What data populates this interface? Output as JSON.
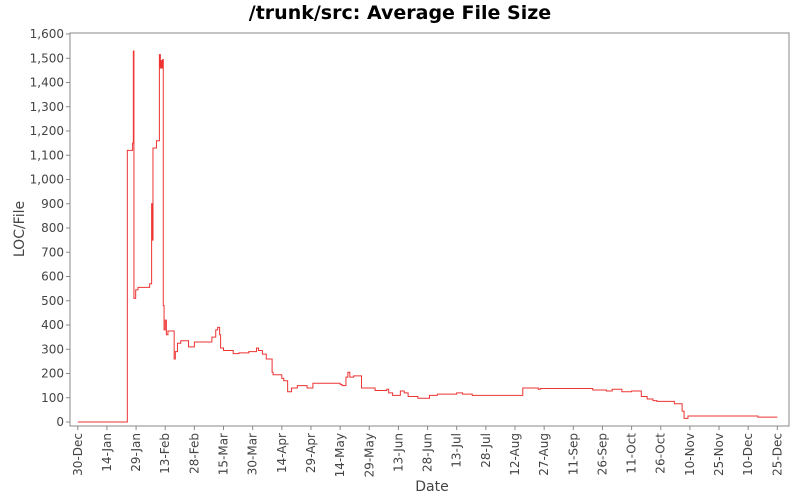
{
  "chart_data": {
    "type": "line",
    "title": "/trunk/src: Average File Size",
    "xlabel": "Date",
    "ylabel": "LOC/File",
    "ylim": [
      0,
      1600
    ],
    "yticks": [
      0,
      100,
      200,
      300,
      400,
      500,
      600,
      700,
      800,
      900,
      1000,
      1100,
      1200,
      1300,
      1400,
      1500,
      1600
    ],
    "ytick_labels": [
      "0",
      "100",
      "200",
      "300",
      "400",
      "500",
      "600",
      "700",
      "800",
      "900",
      "1,000",
      "1,100",
      "1,200",
      "1,300",
      "1,400",
      "1,500",
      "1,600"
    ],
    "x_unit": "days from 30-Dec",
    "xlim": [
      -4,
      366
    ],
    "xticks": [
      {
        "day": 0,
        "label": "30-Dec"
      },
      {
        "day": 15,
        "label": "14-Jan"
      },
      {
        "day": 30,
        "label": "29-Jan"
      },
      {
        "day": 45,
        "label": "13-Feb"
      },
      {
        "day": 60,
        "label": "28-Feb"
      },
      {
        "day": 75,
        "label": "15-Mar"
      },
      {
        "day": 90,
        "label": "30-Mar"
      },
      {
        "day": 105,
        "label": "14-Apr"
      },
      {
        "day": 120,
        "label": "29-Apr"
      },
      {
        "day": 135,
        "label": "14-May"
      },
      {
        "day": 150,
        "label": "29-May"
      },
      {
        "day": 165,
        "label": "13-Jun"
      },
      {
        "day": 180,
        "label": "28-Jun"
      },
      {
        "day": 195,
        "label": "13-Jul"
      },
      {
        "day": 210,
        "label": "28-Jul"
      },
      {
        "day": 225,
        "label": "12-Aug"
      },
      {
        "day": 240,
        "label": "27-Aug"
      },
      {
        "day": 255,
        "label": "11-Sep"
      },
      {
        "day": 270,
        "label": "26-Sep"
      },
      {
        "day": 285,
        "label": "11-Oct"
      },
      {
        "day": 300,
        "label": "26-Oct"
      },
      {
        "day": 315,
        "label": "10-Nov"
      },
      {
        "day": 330,
        "label": "25-Nov"
      },
      {
        "day": 345,
        "label": "10-Dec"
      },
      {
        "day": 360,
        "label": "25-Dec"
      }
    ],
    "grid": false,
    "series": [
      {
        "name": "",
        "color": "#ee3333",
        "step": true,
        "points": [
          [
            0,
            0
          ],
          [
            25.5,
            0
          ],
          [
            25.5,
            1120
          ],
          [
            28.2,
            1120
          ],
          [
            28.2,
            1150
          ],
          [
            28.6,
            1150
          ],
          [
            28.6,
            1530
          ],
          [
            28.9,
            1530
          ],
          [
            28.9,
            510
          ],
          [
            29.8,
            510
          ],
          [
            29.8,
            545
          ],
          [
            31,
            545
          ],
          [
            31,
            555
          ],
          [
            37,
            555
          ],
          [
            37,
            570
          ],
          [
            38,
            570
          ],
          [
            38,
            900
          ],
          [
            38.4,
            900
          ],
          [
            38.4,
            750
          ],
          [
            38.7,
            750
          ],
          [
            38.7,
            1130
          ],
          [
            40.5,
            1130
          ],
          [
            40.5,
            1160
          ],
          [
            42,
            1160
          ],
          [
            42,
            1515
          ],
          [
            42.5,
            1515
          ],
          [
            42.5,
            1460
          ],
          [
            43,
            1460
          ],
          [
            43,
            1490
          ],
          [
            43.3,
            1490
          ],
          [
            43.3,
            1460
          ],
          [
            43.7,
            1460
          ],
          [
            43.7,
            1495
          ],
          [
            44,
            1495
          ],
          [
            44,
            480
          ],
          [
            44.4,
            480
          ],
          [
            44.4,
            380
          ],
          [
            45,
            380
          ],
          [
            45,
            420
          ],
          [
            45.6,
            420
          ],
          [
            45.6,
            360
          ],
          [
            46.4,
            360
          ],
          [
            46.4,
            375
          ],
          [
            49.6,
            375
          ],
          [
            49.6,
            260
          ],
          [
            50.2,
            260
          ],
          [
            50.2,
            290
          ],
          [
            51.3,
            290
          ],
          [
            51.3,
            325
          ],
          [
            53,
            325
          ],
          [
            53,
            335
          ],
          [
            57,
            335
          ],
          [
            57,
            310
          ],
          [
            60,
            310
          ],
          [
            60,
            330
          ],
          [
            69,
            330
          ],
          [
            69,
            350
          ],
          [
            71,
            350
          ],
          [
            71,
            380
          ],
          [
            72,
            380
          ],
          [
            72,
            390
          ],
          [
            73,
            390
          ],
          [
            73,
            360
          ],
          [
            73.5,
            360
          ],
          [
            73.5,
            305
          ],
          [
            75,
            305
          ],
          [
            75,
            295
          ],
          [
            80,
            295
          ],
          [
            80,
            282
          ],
          [
            83,
            282
          ],
          [
            83,
            285
          ],
          [
            88,
            285
          ],
          [
            88,
            290
          ],
          [
            92,
            290
          ],
          [
            92,
            305
          ],
          [
            93,
            305
          ],
          [
            93,
            295
          ],
          [
            95,
            295
          ],
          [
            95,
            280
          ],
          [
            97,
            280
          ],
          [
            97,
            260
          ],
          [
            100,
            260
          ],
          [
            100,
            205
          ],
          [
            100.5,
            205
          ],
          [
            100.5,
            195
          ],
          [
            105,
            195
          ],
          [
            105,
            180
          ],
          [
            106,
            180
          ],
          [
            106,
            170
          ],
          [
            108,
            170
          ],
          [
            108,
            125
          ],
          [
            110,
            125
          ],
          [
            110,
            140
          ],
          [
            113,
            140
          ],
          [
            113,
            150
          ],
          [
            118,
            150
          ],
          [
            118,
            140
          ],
          [
            121,
            140
          ],
          [
            121,
            160
          ],
          [
            135,
            160
          ],
          [
            135,
            155
          ],
          [
            136,
            155
          ],
          [
            136,
            150
          ],
          [
            138,
            150
          ],
          [
            138,
            185
          ],
          [
            139,
            185
          ],
          [
            139,
            205
          ],
          [
            140,
            205
          ],
          [
            140,
            185
          ],
          [
            142,
            185
          ],
          [
            142,
            190
          ],
          [
            146,
            190
          ],
          [
            146,
            140
          ],
          [
            153,
            140
          ],
          [
            153,
            130
          ],
          [
            159,
            130
          ],
          [
            159,
            135
          ],
          [
            160,
            135
          ],
          [
            160,
            120
          ],
          [
            162,
            120
          ],
          [
            162,
            110
          ],
          [
            166,
            110
          ],
          [
            166,
            128
          ],
          [
            168,
            128
          ],
          [
            168,
            120
          ],
          [
            170,
            120
          ],
          [
            170,
            105
          ],
          [
            175,
            105
          ],
          [
            175,
            98
          ],
          [
            181,
            98
          ],
          [
            181,
            110
          ],
          [
            185,
            110
          ],
          [
            185,
            115
          ],
          [
            195,
            115
          ],
          [
            195,
            120
          ],
          [
            198,
            120
          ],
          [
            198,
            115
          ],
          [
            203,
            115
          ],
          [
            203,
            110
          ],
          [
            229,
            110
          ],
          [
            229,
            140
          ],
          [
            237,
            140
          ],
          [
            237,
            135
          ],
          [
            238,
            135
          ],
          [
            238,
            138
          ],
          [
            265,
            138
          ],
          [
            265,
            132
          ],
          [
            272,
            132
          ],
          [
            272,
            128
          ],
          [
            275,
            128
          ],
          [
            275,
            135
          ],
          [
            280,
            135
          ],
          [
            280,
            125
          ],
          [
            285,
            125
          ],
          [
            285,
            128
          ],
          [
            290,
            128
          ],
          [
            290,
            105
          ],
          [
            293,
            105
          ],
          [
            293,
            95
          ],
          [
            296,
            95
          ],
          [
            296,
            88
          ],
          [
            298,
            88
          ],
          [
            298,
            85
          ],
          [
            307,
            85
          ],
          [
            307,
            75
          ],
          [
            311,
            75
          ],
          [
            311,
            45
          ],
          [
            312,
            45
          ],
          [
            312,
            15
          ],
          [
            314,
            15
          ],
          [
            314,
            25
          ],
          [
            350,
            25
          ],
          [
            350,
            20
          ],
          [
            360,
            20
          ]
        ]
      }
    ]
  }
}
